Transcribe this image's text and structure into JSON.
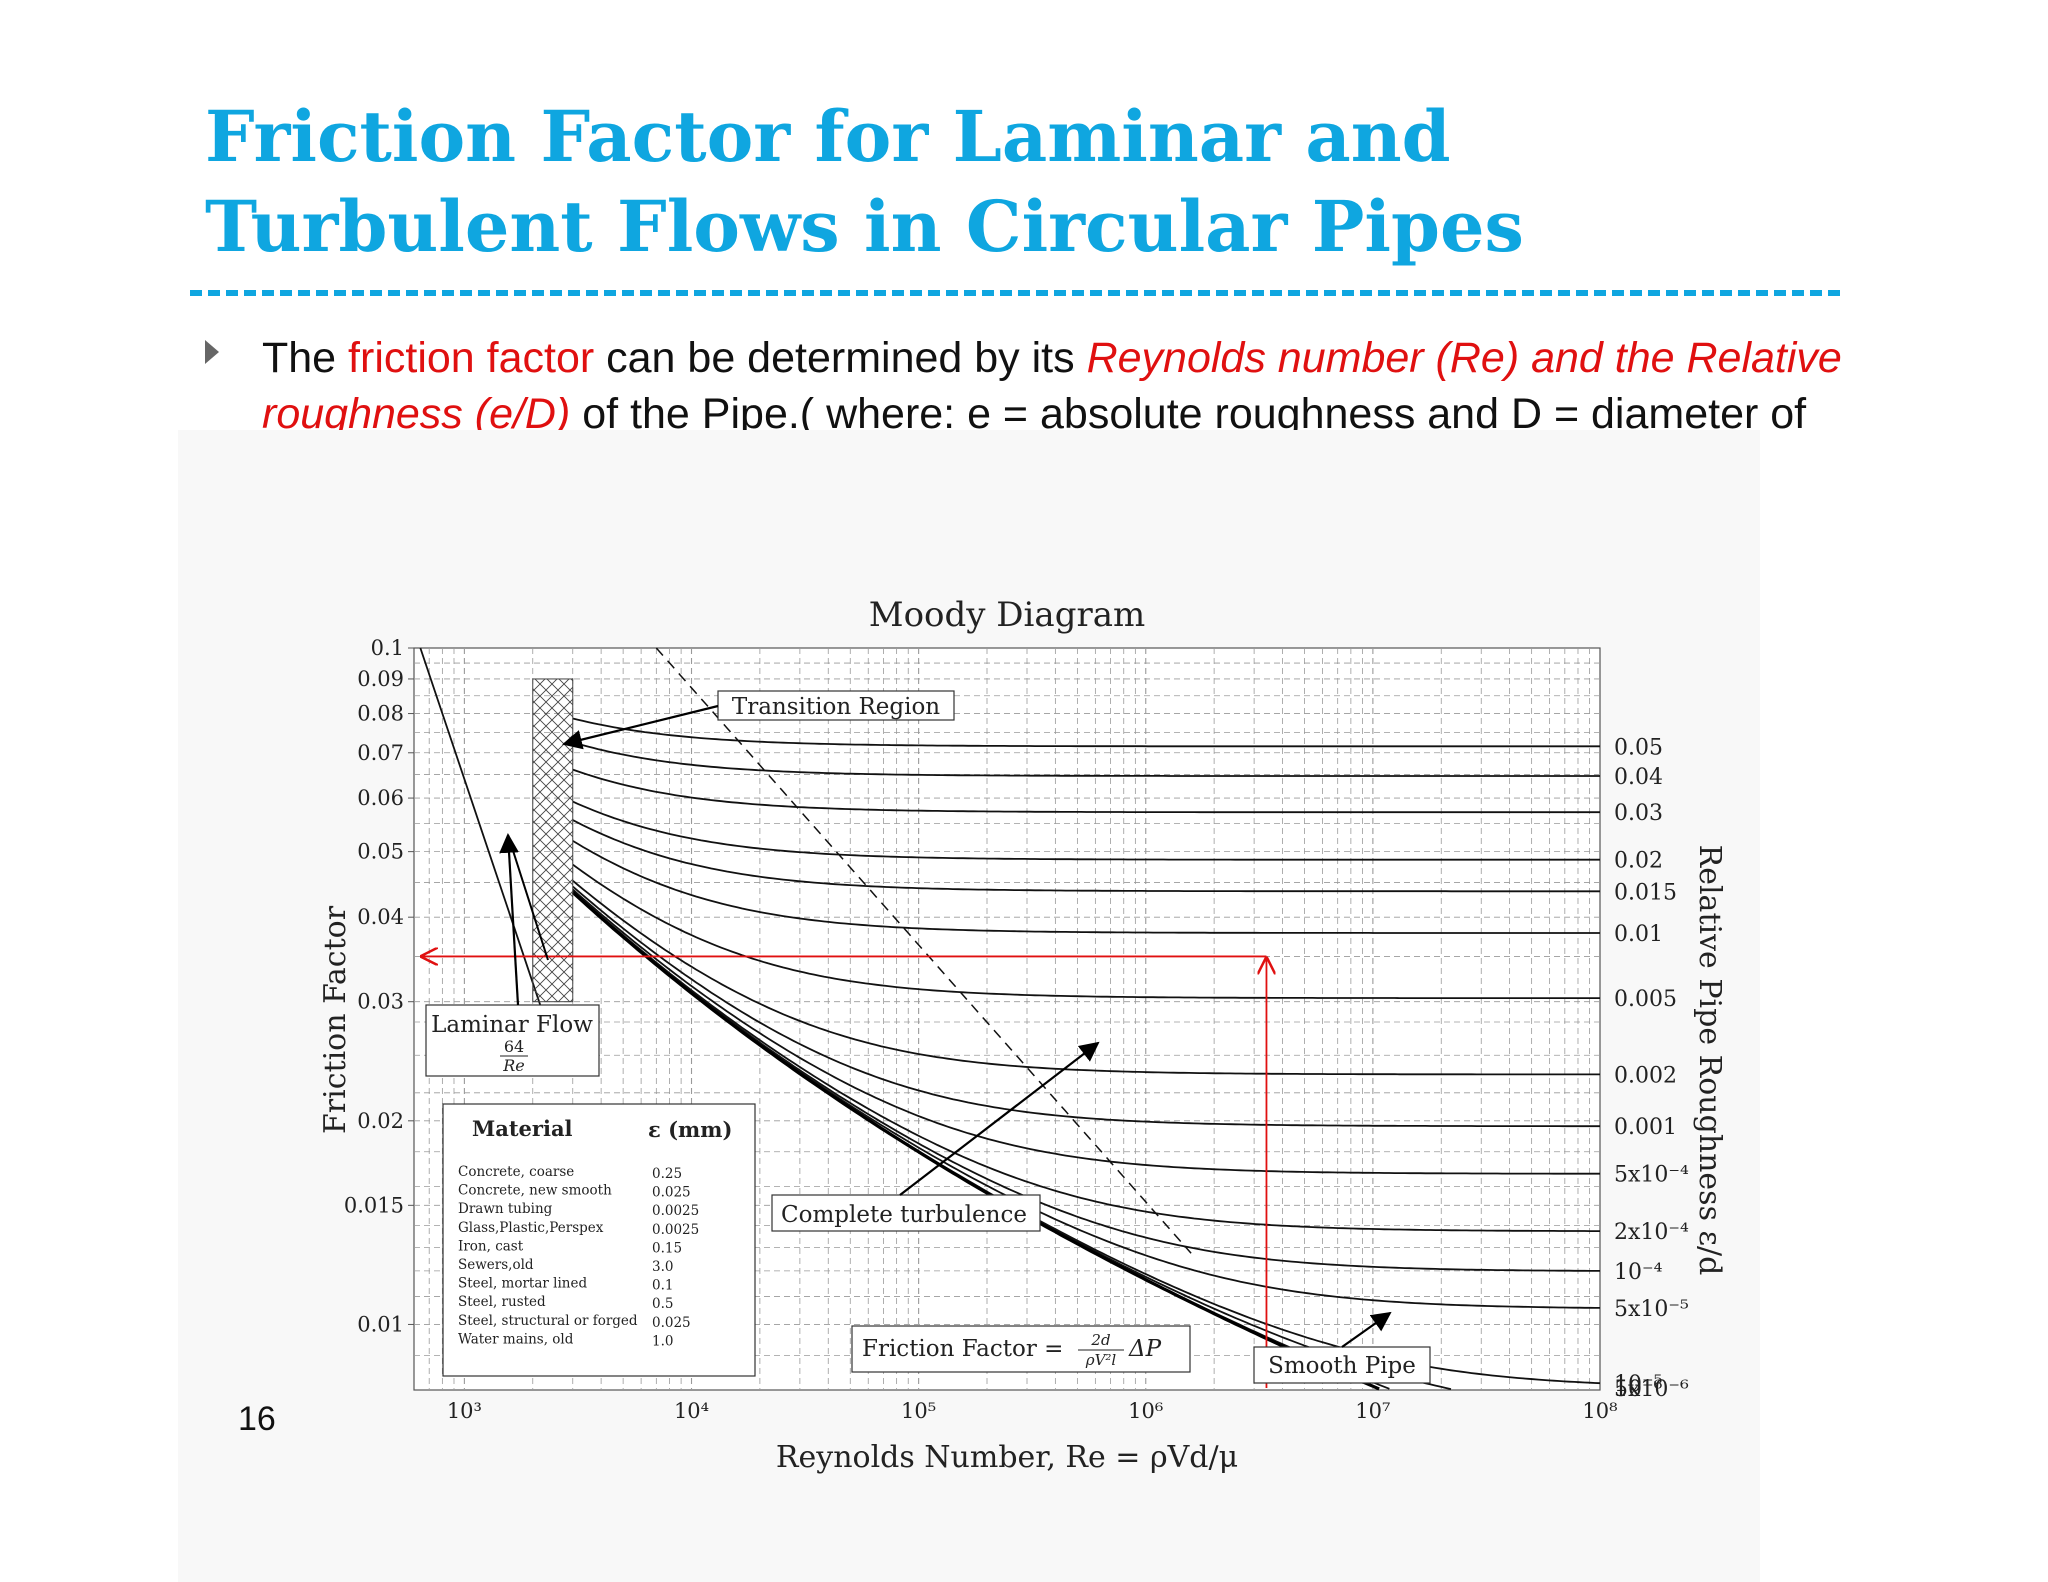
{
  "slide": {
    "title_line1": "Friction Factor for Laminar and",
    "title_line2": "Turbulent Flows in Circular Pipes",
    "bullet": {
      "p1": "The ",
      "p2": "friction factor",
      "p3": " can be determined by its ",
      "p4": "Reynolds number (Re) and the Relative roughness (e/D)",
      "p5": " of the Pipe.( where:  e = absolute roughness and D = diameter of pipe)"
    },
    "page_number": "16",
    "title_color": "#0fa6e0",
    "highlight_color": "#e01010"
  },
  "chart_data": {
    "type": "line",
    "title": "Moody Diagram",
    "xlabel": "Reynolds Number, Re = ρVd/μ",
    "ylabel": "Friction Factor",
    "y2label": "Relative Pipe Roughness ε/d",
    "xscale": "log",
    "yscale": "log",
    "xlim": [
      600,
      100000000
    ],
    "ylim": [
      0.008,
      0.1
    ],
    "grid": true,
    "x_ticks": [
      {
        "label": "10³",
        "value": 1000
      },
      {
        "label": "10⁴",
        "value": 10000
      },
      {
        "label": "10⁵",
        "value": 100000
      },
      {
        "label": "10⁶",
        "value": 1000000
      },
      {
        "label": "10⁷",
        "value": 10000000
      },
      {
        "label": "10⁸",
        "value": 100000000
      }
    ],
    "y_ticks": [
      {
        "label": "0.1",
        "value": 0.1
      },
      {
        "label": "0.09",
        "value": 0.09
      },
      {
        "label": "0.08",
        "value": 0.08
      },
      {
        "label": "0.07",
        "value": 0.07
      },
      {
        "label": "0.06",
        "value": 0.06
      },
      {
        "label": "0.05",
        "value": 0.05
      },
      {
        "label": "0.04",
        "value": 0.04
      },
      {
        "label": "0.03",
        "value": 0.03
      },
      {
        "label": "0.02",
        "value": 0.02
      },
      {
        "label": "0.015",
        "value": 0.015
      },
      {
        "label": "0.01",
        "value": 0.01
      }
    ],
    "roughness_curves": [
      {
        "label": "0.05",
        "roughness": 0.05
      },
      {
        "label": "0.04",
        "roughness": 0.04
      },
      {
        "label": "0.03",
        "roughness": 0.03
      },
      {
        "label": "0.02",
        "roughness": 0.02
      },
      {
        "label": "0.015",
        "roughness": 0.015
      },
      {
        "label": "0.01",
        "roughness": 0.01
      },
      {
        "label": "0.005",
        "roughness": 0.005
      },
      {
        "label": "0.002",
        "roughness": 0.002
      },
      {
        "label": "0.001",
        "roughness": 0.001
      },
      {
        "label": "5x10⁻⁴",
        "roughness": 0.0005
      },
      {
        "label": "2x10⁻⁴",
        "roughness": 0.0002
      },
      {
        "label": "10⁻⁴",
        "roughness": 0.0001
      },
      {
        "label": "5x10⁻⁵",
        "roughness": 5e-05
      },
      {
        "label": "10⁻⁵",
        "roughness": 1e-05
      },
      {
        "label": "5x10⁻⁶",
        "roughness": 5e-06
      },
      {
        "label": "10⁻⁶",
        "roughness": 1e-06
      }
    ],
    "laminar": {
      "label": "Laminar Flow",
      "formula_num": "64",
      "formula_den": "Re",
      "f_equals": "64/Re",
      "x_range": [
        640,
        2300
      ]
    },
    "transition_zone": {
      "x_range": [
        2000,
        3000
      ],
      "y_range": [
        0.03,
        0.09
      ]
    },
    "annotations": {
      "transition": "Transition Region",
      "complete_turbulence": "Complete turbulence",
      "friction_formula_left": "Friction Factor = ",
      "friction_formula_num": "2d",
      "friction_formula_den": "ρV²l",
      "friction_formula_right": "ΔP",
      "smooth_pipe": "Smooth Pipe"
    },
    "example_reading": {
      "Re": 3400000,
      "f": 0.035,
      "roughness": 0.005
    },
    "material_table": {
      "headers": [
        "Material",
        "ε (mm)"
      ],
      "rows": [
        [
          "Concrete, coarse",
          "0.25"
        ],
        [
          "Concrete, new smooth",
          "0.025"
        ],
        [
          "Drawn tubing",
          "0.0025"
        ],
        [
          "Glass,Plastic,Perspex",
          "0.0025"
        ],
        [
          "Iron, cast",
          "0.15"
        ],
        [
          "Sewers,old",
          "3.0"
        ],
        [
          "Steel, mortar lined",
          "0.1"
        ],
        [
          "Steel, rusted",
          "0.5"
        ],
        [
          "Steel, structural or forged",
          "0.025"
        ],
        [
          "Water mains, old",
          "1.0"
        ]
      ]
    }
  }
}
